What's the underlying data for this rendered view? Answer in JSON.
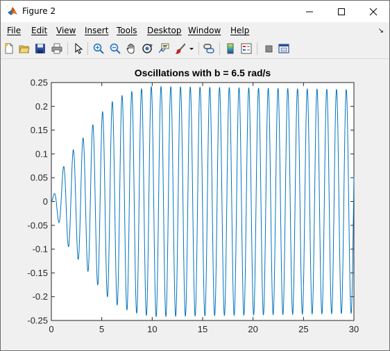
{
  "window": {
    "title": "Figure 2",
    "accent": "#ffffff"
  },
  "menu": {
    "items": [
      "File",
      "Edit",
      "View",
      "Insert",
      "Tools",
      "Desktop",
      "Window",
      "Help"
    ]
  },
  "toolbar": {
    "buttons": [
      "new-figure-icon",
      "open-icon",
      "save-icon",
      "print-icon",
      "pointer-icon",
      "zoom-in-icon",
      "zoom-out-icon",
      "pan-icon",
      "rotate-icon",
      "data-cursor-icon",
      "brush-icon",
      "link-icon",
      "colorbar-icon",
      "legend-icon",
      "hide-plot-tools-icon",
      "show-plot-tools-icon"
    ]
  },
  "chart_data": {
    "type": "line",
    "title": "Oscillations with b = 6.5 rad/s",
    "xlabel": "",
    "ylabel": "",
    "xlim": [
      0,
      30
    ],
    "ylim": [
      -0.25,
      0.25
    ],
    "xticks": [
      "0",
      "5",
      "10",
      "15",
      "20",
      "25",
      "30"
    ],
    "yticks": [
      "0.25",
      "0.2",
      "0.15",
      "0.1",
      "0.05",
      "0",
      "-0.05",
      "-0.1",
      "-0.15",
      "-0.2",
      "-0.25"
    ],
    "grid": false,
    "series": [
      {
        "color": "#0072bd",
        "signal": "driven damped oscillation starting at 0",
        "drive_frequency_rad_s": 6.5,
        "steady_amplitude": 0.235,
        "peaks": [
          {
            "x": 0.5,
            "y": 0.03
          },
          {
            "x": 1.0,
            "y": -0.06
          },
          {
            "x": 1.45,
            "y": 0.088
          },
          {
            "x": 2.4,
            "y": 0.115
          },
          {
            "x": 3.4,
            "y": 0.14
          },
          {
            "x": 4.4,
            "y": 0.17
          },
          {
            "x": 5.3,
            "y": 0.195
          },
          {
            "x": 6.3,
            "y": 0.215
          },
          {
            "x": 7.5,
            "y": 0.228
          },
          {
            "x": 8.5,
            "y": 0.235
          },
          {
            "x": 10.0,
            "y": 0.242
          },
          {
            "x": 30.0,
            "y": 0.235
          }
        ]
      }
    ]
  }
}
